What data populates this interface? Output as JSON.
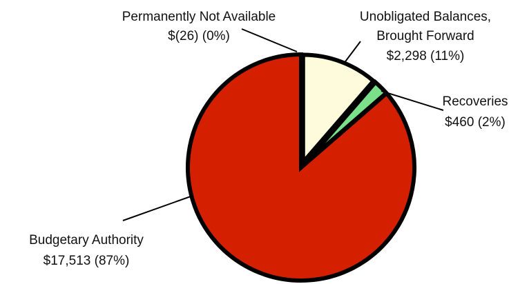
{
  "chart_data": {
    "type": "pie",
    "title": "",
    "start_angle_deg": 0,
    "direction": "clockwise",
    "slices": [
      {
        "name": "Unobligated Balances, Brought Forward",
        "label_lines": [
          "Unobligated Balances,",
          "Brought Forward"
        ],
        "value_label": "$2,298 (11%)",
        "value": 2298,
        "percent": 11,
        "color": "#fdfbdc",
        "exploded": true
      },
      {
        "name": "Recoveries",
        "label_lines": [
          "Recoveries"
        ],
        "value_label": "$460 (2%)",
        "value": 460,
        "percent": 2,
        "color": "#7be08a",
        "exploded": true
      },
      {
        "name": "Budgetary Authority",
        "label_lines": [
          "Budgetary Authority"
        ],
        "value_label": "$17,513 (87%)",
        "value": 17513,
        "percent": 87,
        "color": "#d42000",
        "exploded": false
      },
      {
        "name": "Permanently Not Available",
        "label_lines": [
          "Permanently Not Available"
        ],
        "value_label": "$(26) (0%)",
        "value": -26,
        "percent": 0,
        "color": "#d42000",
        "exploded": false
      }
    ]
  }
}
